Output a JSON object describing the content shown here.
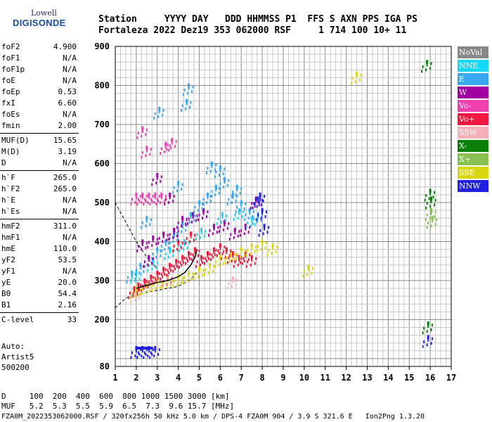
{
  "logo": {
    "line1": "Lowell",
    "line2": "DIGISONDE"
  },
  "header": {
    "line1": "Station     YYYY DAY   DDD HHMMSS P1  FFS S AXN PPS IGA PS",
    "line2": "Fortaleza 2022 Dez19 353 062000 RSF     1 714 100 10+ 11"
  },
  "params": {
    "group1": [
      {
        "name": "foF2",
        "value": "4.900"
      },
      {
        "name": "foF1",
        "value": "N/A"
      },
      {
        "name": "foF1p",
        "value": "N/A"
      },
      {
        "name": "foE",
        "value": "N/A"
      },
      {
        "name": "foEp",
        "value": "0.53"
      },
      {
        "name": "fxI",
        "value": "6.60"
      },
      {
        "name": "foEs",
        "value": "N/A"
      },
      {
        "name": "fmin",
        "value": "2.00"
      }
    ],
    "group2": [
      {
        "name": "MUF(D)",
        "value": "15.65"
      },
      {
        "name": "M(D)",
        "value": "3.19"
      },
      {
        "name": "D",
        "value": "N/A"
      }
    ],
    "group3": [
      {
        "name": "h`F",
        "value": "265.0"
      },
      {
        "name": "h`F2",
        "value": "265.0"
      },
      {
        "name": "h`E",
        "value": "N/A"
      },
      {
        "name": "h`Es",
        "value": "N/A"
      }
    ],
    "group4": [
      {
        "name": "hmF2",
        "value": "311.0"
      },
      {
        "name": "hmF1",
        "value": "N/A"
      },
      {
        "name": "hmE",
        "value": "110.0"
      },
      {
        "name": "yF2",
        "value": "53.5"
      },
      {
        "name": "yF1",
        "value": "N/A"
      },
      {
        "name": "yE",
        "value": "20.0"
      },
      {
        "name": "B0",
        "value": "54.4"
      },
      {
        "name": "B1",
        "value": "2.16"
      }
    ],
    "group5": [
      {
        "name": "C-level",
        "value": "33"
      }
    ]
  },
  "auto": {
    "line1": "Auto:",
    "line2": "Artist5",
    "line3": "500200"
  },
  "legend": [
    {
      "label": "NoVal",
      "color": "#888888"
    },
    {
      "label": "NNE",
      "color": "#18d8f8"
    },
    {
      "label": "E",
      "color": "#38a8f0"
    },
    {
      "label": "W",
      "color": "#a000a0"
    },
    {
      "label": "Vo-",
      "color": "#f040b0"
    },
    {
      "label": "Vo+",
      "color": "#f01840"
    },
    {
      "label": "SSW",
      "color": "#f8b0b8"
    },
    {
      "label": "X-",
      "color": "#088008"
    },
    {
      "label": "X+",
      "color": "#88c050"
    },
    {
      "label": "SSE",
      "color": "#d8d810"
    },
    {
      "label": "NNW",
      "color": "#2020e0"
    }
  ],
  "footer": {
    "line1": "D     100  200  400  600  800 1000 1500 3000 [km]",
    "line2": "MUF   5.2  5.3  5.5  5.9  6.5  7.3  9.6 15.7 [MHz]",
    "line3": "FZA0M_2022353062000.RSF / 320fx256h 50 kHz 5.0 km / DPS-4 FZA0M 904 / 3.9 S 321.6 E   Ion2Png 1.3.20"
  },
  "chart_data": {
    "type": "scatter",
    "xlim": [
      1,
      17
    ],
    "ylim": [
      80,
      900
    ],
    "xticks": [
      "1",
      "2",
      "3",
      "4",
      "5",
      "6",
      "7",
      "8",
      "9",
      "10",
      "11",
      "12",
      "13",
      "14",
      "15",
      "16",
      "17"
    ],
    "yticks": [
      "80",
      "200",
      "300",
      "400",
      "500",
      "600",
      "700",
      "800",
      "900"
    ],
    "grid": true,
    "legend_position": "right",
    "series": [
      {
        "name": "E",
        "color": "#38a8f0",
        "points": [
          [
            1.8,
            320
          ],
          [
            2.2,
            340
          ],
          [
            2.6,
            360
          ],
          [
            3.0,
            380
          ],
          [
            3.4,
            400
          ],
          [
            3.8,
            420
          ],
          [
            4.2,
            445
          ],
          [
            4.6,
            470
          ],
          [
            5.0,
            500
          ],
          [
            5.4,
            520
          ],
          [
            5.8,
            540
          ],
          [
            6.2,
            560
          ],
          [
            6.6,
            520
          ],
          [
            7.0,
            500
          ],
          [
            7.4,
            480
          ],
          [
            7.8,
            470
          ],
          [
            4.4,
            760
          ],
          [
            4.5,
            800
          ],
          [
            3.1,
            740
          ],
          [
            5.6,
            600
          ],
          [
            6.0,
            590
          ],
          [
            2.5,
            460
          ],
          [
            4.0,
            550
          ],
          [
            6.8,
            540
          ]
        ]
      },
      {
        "name": "NNE",
        "color": "#18d8f8",
        "points": [
          [
            2.0,
            320
          ],
          [
            2.8,
            350
          ],
          [
            3.6,
            380
          ],
          [
            4.3,
            400
          ],
          [
            5.1,
            430
          ],
          [
            6.1,
            470
          ],
          [
            6.9,
            480
          ],
          [
            7.5,
            460
          ]
        ]
      },
      {
        "name": "W",
        "color": "#a000a0",
        "points": [
          [
            2.3,
            400
          ],
          [
            2.8,
            410
          ],
          [
            3.3,
            420
          ],
          [
            3.8,
            430
          ],
          [
            4.2,
            460
          ],
          [
            4.7,
            470
          ],
          [
            5.2,
            480
          ],
          [
            5.7,
            440
          ],
          [
            6.2,
            450
          ],
          [
            6.7,
            430
          ],
          [
            7.2,
            440
          ],
          [
            7.7,
            510
          ],
          [
            3.0,
            570
          ],
          [
            3.6,
            520
          ],
          [
            2.6,
            360
          ]
        ]
      },
      {
        "name": "Vo-",
        "color": "#f040b0",
        "points": [
          [
            2.0,
            520
          ],
          [
            2.3,
            520
          ],
          [
            2.6,
            520
          ],
          [
            2.9,
            520
          ],
          [
            3.2,
            520
          ],
          [
            2.5,
            640
          ],
          [
            2.3,
            690
          ],
          [
            3.4,
            650
          ],
          [
            3.7,
            660
          ],
          [
            2.4,
            300
          ],
          [
            3.5,
            310
          ]
        ]
      },
      {
        "name": "Vo+",
        "color": "#f01840",
        "points": [
          [
            1.9,
            280
          ],
          [
            2.1,
            290
          ],
          [
            2.4,
            300
          ],
          [
            2.7,
            310
          ],
          [
            3.0,
            320
          ],
          [
            3.3,
            330
          ],
          [
            3.6,
            340
          ],
          [
            3.9,
            350
          ],
          [
            4.2,
            360
          ],
          [
            4.5,
            370
          ],
          [
            4.8,
            380
          ],
          [
            5.1,
            360
          ],
          [
            5.4,
            370
          ],
          [
            5.7,
            380
          ],
          [
            6.0,
            390
          ],
          [
            6.3,
            380
          ],
          [
            6.6,
            370
          ],
          [
            6.9,
            360
          ],
          [
            7.2,
            370
          ],
          [
            7.5,
            360
          ],
          [
            4.0,
            400
          ],
          [
            4.6,
            420
          ]
        ]
      },
      {
        "name": "SSW",
        "color": "#f8b0b8",
        "points": [
          [
            2.0,
            270
          ],
          [
            3.0,
            300
          ],
          [
            4.0,
            310
          ],
          [
            6.6,
            305
          ]
        ]
      },
      {
        "name": "X-",
        "color": "#088008",
        "points": [
          [
            15.85,
            860
          ],
          [
            16.0,
            530
          ],
          [
            16.05,
            510
          ],
          [
            15.9,
            190
          ]
        ]
      },
      {
        "name": "X+",
        "color": "#88c050",
        "points": [
          [
            16.05,
            480
          ],
          [
            16.1,
            460
          ]
        ]
      },
      {
        "name": "SSE",
        "color": "#d8d810",
        "points": [
          [
            2.0,
            280
          ],
          [
            2.5,
            290
          ],
          [
            3.0,
            300
          ],
          [
            3.5,
            305
          ],
          [
            4.0,
            310
          ],
          [
            4.5,
            320
          ],
          [
            5.0,
            330
          ],
          [
            5.5,
            340
          ],
          [
            6.0,
            360
          ],
          [
            6.5,
            370
          ],
          [
            7.0,
            380
          ],
          [
            7.5,
            390
          ],
          [
            8.0,
            400
          ],
          [
            8.5,
            390
          ],
          [
            10.2,
            335
          ],
          [
            12.5,
            830
          ]
        ]
      },
      {
        "name": "NNW",
        "color": "#2020e0",
        "points": [
          [
            7.8,
            510
          ],
          [
            7.9,
            520
          ],
          [
            8.0,
            480
          ],
          [
            8.1,
            440
          ],
          [
            15.9,
            155
          ],
          [
            2.0,
            127
          ],
          [
            2.3,
            127
          ],
          [
            2.6,
            127
          ],
          [
            2.9,
            127
          ]
        ]
      }
    ],
    "black_curve": [
      [
        2.0,
        280
      ],
      [
        2.5,
        288
      ],
      [
        3.0,
        295
      ],
      [
        3.5,
        300
      ],
      [
        4.0,
        310
      ],
      [
        4.3,
        320
      ],
      [
        4.6,
        340
      ],
      [
        4.8,
        360
      ],
      [
        4.9,
        380
      ]
    ],
    "dashed_curve_upper": [
      [
        1.0,
        500
      ],
      [
        1.5,
        450
      ],
      [
        2.0,
        400
      ],
      [
        2.5,
        360
      ],
      [
        3.0,
        330
      ]
    ],
    "dashed_curve_lower": [
      [
        1.0,
        230
      ],
      [
        1.5,
        255
      ],
      [
        2.0,
        265
      ],
      [
        2.5,
        270
      ],
      [
        3.0,
        275
      ],
      [
        3.5,
        280
      ],
      [
        4.0,
        285
      ],
      [
        4.5,
        300
      ],
      [
        4.9,
        320
      ]
    ]
  }
}
